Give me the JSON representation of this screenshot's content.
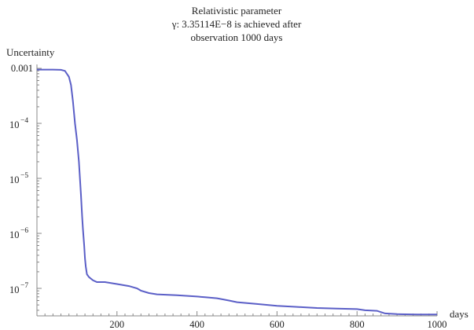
{
  "chart_data": {
    "type": "line",
    "title_lines": [
      "Relativistic parameter",
      "γ: 3.35114E−8 is achieved after",
      "observation 1000 days"
    ],
    "xlabel": "days",
    "ylabel": "Uncertainty",
    "xlim": [
      0,
      1000
    ],
    "ylim": [
      3.3e-08,
      0.001
    ],
    "y_scale": "log",
    "grid": false,
    "x_ticks": [
      {
        "value": 200,
        "label": "200"
      },
      {
        "value": 400,
        "label": "400"
      },
      {
        "value": 600,
        "label": "600"
      },
      {
        "value": 800,
        "label": "800"
      },
      {
        "value": 1000,
        "label": "1000"
      }
    ],
    "y_ticks": [
      {
        "value": 0.001,
        "base": "0.001",
        "exp": ""
      },
      {
        "value": 0.0001,
        "base": "10",
        "exp": "−4"
      },
      {
        "value": 1e-05,
        "base": "10",
        "exp": "−5"
      },
      {
        "value": 1e-06,
        "base": "10",
        "exp": "−6"
      },
      {
        "value": 1e-07,
        "base": "10",
        "exp": "−7"
      }
    ],
    "line_color": "#5b5fc7",
    "series": [
      {
        "x": [
          0,
          20,
          40,
          60,
          70,
          80,
          85,
          90,
          95,
          100,
          105,
          110,
          113,
          115,
          118,
          120,
          122,
          125,
          130,
          140,
          150,
          170,
          200,
          230,
          250,
          260,
          280,
          300,
          350,
          400,
          420,
          450,
          480,
          500,
          550,
          600,
          650,
          700,
          750,
          800,
          820,
          850,
          870,
          900,
          950,
          1000
        ],
        "y": [
          0.00095,
          0.00095,
          0.00095,
          0.00094,
          0.0009,
          0.0007,
          0.0005,
          0.00025,
          0.0001,
          5e-05,
          2e-05,
          5e-06,
          2e-06,
          1.2e-06,
          6e-07,
          3.5e-07,
          2.5e-07,
          1.8e-07,
          1.6e-07,
          1.4e-07,
          1.3e-07,
          1.3e-07,
          1.2e-07,
          1.1e-07,
          1e-07,
          9.1e-08,
          8.2e-08,
          7.8e-08,
          7.5e-08,
          7.1e-08,
          6.9e-08,
          6.6e-08,
          6e-08,
          5.6e-08,
          5.2e-08,
          4.8e-08,
          4.6e-08,
          4.4e-08,
          4.3e-08,
          4.2e-08,
          4e-08,
          3.9e-08,
          3.5e-08,
          3.4e-08,
          3.36e-08,
          3.35e-08
        ]
      }
    ]
  }
}
